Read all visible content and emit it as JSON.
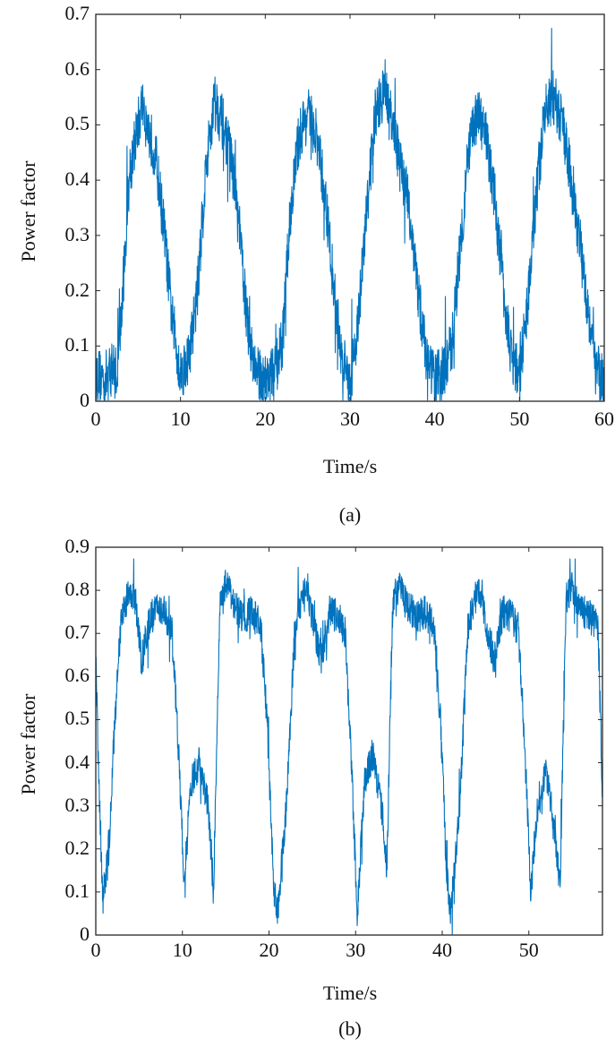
{
  "figure": {
    "panels": [
      {
        "caption": "(a)",
        "xlabel": "Time/s",
        "ylabel": "Power factor",
        "xticks": [
          "0",
          "10",
          "20",
          "30",
          "40",
          "50",
          "60"
        ],
        "yticks": [
          "0",
          "0.1",
          "0.2",
          "0.3",
          "0.4",
          "0.5",
          "0.6",
          "0.7"
        ],
        "line_color": "#0072BD"
      },
      {
        "caption": "(b)",
        "xlabel": "Time/s",
        "ylabel": "Power factor",
        "xticks": [
          "0",
          "10",
          "20",
          "30",
          "40",
          "50"
        ],
        "yticks": [
          "0",
          "0.1",
          "0.2",
          "0.3",
          "0.4",
          "0.5",
          "0.6",
          "0.7",
          "0.8",
          "0.9"
        ],
        "line_color": "#0072BD"
      }
    ]
  },
  "chart_data": [
    {
      "type": "line",
      "title": "",
      "caption": "(a)",
      "xlabel": "Time/s",
      "ylabel": "Power factor",
      "xlim": [
        0,
        60
      ],
      "ylim": [
        0,
        0.7
      ],
      "grid": false,
      "legend": null,
      "x_ticks": [
        0,
        10,
        20,
        30,
        40,
        50,
        60
      ],
      "y_ticks": [
        0,
        0.1,
        0.2,
        0.3,
        0.4,
        0.5,
        0.6,
        0.7
      ],
      "series": [
        {
          "name": "Power factor",
          "color": "#0072BD",
          "noise_amplitude": 0.05,
          "x": [
            0,
            1,
            2,
            2.5,
            3,
            4,
            5,
            5.5,
            6,
            7,
            8,
            9,
            10,
            11,
            12,
            13,
            14,
            15,
            16,
            17,
            18,
            19,
            20,
            21,
            22,
            23,
            24,
            25,
            26,
            27,
            28,
            29,
            30,
            31,
            32,
            33,
            34,
            35,
            36,
            37,
            38,
            39,
            40,
            41,
            42,
            43,
            44,
            45,
            46,
            47,
            48,
            49,
            50,
            51,
            52,
            53,
            54,
            55,
            56,
            57,
            58,
            59,
            60
          ],
          "y": [
            0.05,
            0.04,
            0.06,
            0.05,
            0.15,
            0.42,
            0.5,
            0.54,
            0.5,
            0.45,
            0.32,
            0.15,
            0.05,
            0.08,
            0.2,
            0.42,
            0.55,
            0.5,
            0.44,
            0.3,
            0.12,
            0.05,
            0.04,
            0.05,
            0.1,
            0.35,
            0.48,
            0.52,
            0.48,
            0.38,
            0.22,
            0.08,
            0.03,
            0.15,
            0.35,
            0.52,
            0.56,
            0.5,
            0.42,
            0.35,
            0.2,
            0.08,
            0.04,
            0.05,
            0.1,
            0.28,
            0.45,
            0.52,
            0.48,
            0.38,
            0.22,
            0.08,
            0.05,
            0.18,
            0.38,
            0.52,
            0.55,
            0.5,
            0.42,
            0.3,
            0.18,
            0.06,
            0.03
          ]
        }
      ]
    },
    {
      "type": "line",
      "title": "",
      "caption": "(b)",
      "xlabel": "Time/s",
      "ylabel": "Power factor",
      "xlim": [
        0,
        58.5
      ],
      "ylim": [
        0,
        0.9
      ],
      "grid": false,
      "legend": null,
      "x_ticks": [
        0,
        10,
        20,
        30,
        40,
        50
      ],
      "y_ticks": [
        0,
        0.1,
        0.2,
        0.3,
        0.4,
        0.5,
        0.6,
        0.7,
        0.8,
        0.9
      ],
      "series": [
        {
          "name": "Power factor",
          "color": "#0072BD",
          "noise_amplitude": 0.04,
          "x": [
            0,
            0.3,
            0.8,
            1.5,
            2.2,
            3,
            4,
            4.5,
            5.3,
            6,
            7,
            8,
            8.8,
            9.5,
            10.2,
            11,
            12,
            13,
            13.6,
            14.3,
            15,
            16,
            17,
            18,
            19,
            19.8,
            20.5,
            21,
            22,
            23,
            23.8,
            24.5,
            25.3,
            26,
            27,
            28,
            28.8,
            29.5,
            30.2,
            31,
            32,
            33,
            33.6,
            34.3,
            35,
            36,
            37,
            38,
            39,
            39.8,
            40.5,
            41,
            42,
            43,
            43.8,
            44.5,
            45.3,
            46,
            47,
            48,
            48.8,
            49.5,
            50.2,
            51,
            52,
            53,
            53.6,
            54.3,
            55,
            56,
            57,
            58,
            58.5
          ],
          "y": [
            0.68,
            0.4,
            0.08,
            0.2,
            0.5,
            0.75,
            0.8,
            0.79,
            0.63,
            0.72,
            0.76,
            0.75,
            0.7,
            0.45,
            0.12,
            0.35,
            0.4,
            0.3,
            0.1,
            0.75,
            0.81,
            0.77,
            0.74,
            0.75,
            0.72,
            0.5,
            0.12,
            0.05,
            0.3,
            0.72,
            0.78,
            0.8,
            0.7,
            0.64,
            0.75,
            0.74,
            0.7,
            0.4,
            0.05,
            0.35,
            0.42,
            0.3,
            0.15,
            0.78,
            0.81,
            0.76,
            0.74,
            0.75,
            0.72,
            0.5,
            0.15,
            0.05,
            0.3,
            0.72,
            0.78,
            0.8,
            0.7,
            0.64,
            0.75,
            0.74,
            0.7,
            0.45,
            0.1,
            0.3,
            0.38,
            0.25,
            0.1,
            0.78,
            0.81,
            0.76,
            0.74,
            0.72,
            0.3
          ]
        }
      ]
    }
  ]
}
